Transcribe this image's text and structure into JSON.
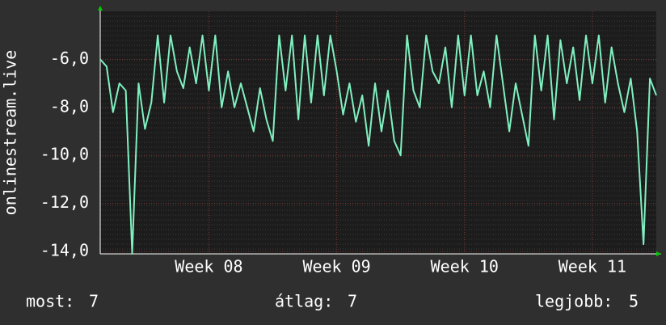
{
  "chart_data": {
    "type": "line",
    "y_label": "onlinestream.live",
    "xlim": [
      7.15,
      11.5
    ],
    "xticks": [
      {
        "value": 8,
        "label": "Week 08"
      },
      {
        "value": 9,
        "label": "Week 09"
      },
      {
        "value": 10,
        "label": "Week 10"
      },
      {
        "value": 11,
        "label": "Week 11"
      }
    ],
    "ylim": [
      -14.1,
      -4
    ],
    "yticks": [
      {
        "value": -14,
        "label": "-14,0"
      },
      {
        "value": -12,
        "label": "-12,0"
      },
      {
        "value": -10,
        "label": "-10,0"
      },
      {
        "value": -8,
        "label": "-8,0"
      },
      {
        "value": -6,
        "label": "-6,0"
      }
    ],
    "grid": true,
    "x": [
      7.15,
      7.2,
      7.25,
      7.3,
      7.35,
      7.4,
      7.45,
      7.5,
      7.55,
      7.6,
      7.65,
      7.7,
      7.75,
      7.8,
      7.85,
      7.9,
      7.95,
      8.0,
      8.05,
      8.1,
      8.15,
      8.2,
      8.25,
      8.3,
      8.35,
      8.4,
      8.45,
      8.5,
      8.55,
      8.6,
      8.65,
      8.7,
      8.75,
      8.8,
      8.85,
      8.9,
      8.95,
      9.0,
      9.05,
      9.1,
      9.15,
      9.2,
      9.25,
      9.3,
      9.35,
      9.4,
      9.45,
      9.5,
      9.55,
      9.6,
      9.65,
      9.7,
      9.75,
      9.8,
      9.85,
      9.9,
      9.95,
      10.0,
      10.05,
      10.1,
      10.15,
      10.2,
      10.25,
      10.3,
      10.35,
      10.4,
      10.45,
      10.5,
      10.55,
      10.6,
      10.65,
      10.7,
      10.75,
      10.8,
      10.85,
      10.9,
      10.95,
      11.0,
      11.05,
      11.1,
      11.15,
      11.2,
      11.25,
      11.3,
      11.35,
      11.4,
      11.45,
      11.5
    ],
    "series": [
      {
        "color": "#80f0c0",
        "values": [
          -6,
          -6.3,
          -8.2,
          -7,
          -7.3,
          -14.1,
          -7,
          -8.9,
          -7.8,
          -5,
          -7.8,
          -5,
          -6.5,
          -7.2,
          -5.5,
          -7,
          -5,
          -7.3,
          -5,
          -8,
          -6.5,
          -8,
          -7,
          -8,
          -9,
          -7.2,
          -8.5,
          -9.4,
          -5,
          -7.3,
          -5,
          -8.5,
          -5,
          -7.8,
          -5,
          -7.5,
          -5,
          -6.5,
          -8.3,
          -7,
          -8.6,
          -7.5,
          -9.6,
          -7,
          -9,
          -7.3,
          -9.4,
          -10,
          -5,
          -7.3,
          -8,
          -5,
          -6.5,
          -7,
          -5.5,
          -8,
          -5,
          -7.5,
          -5,
          -7.5,
          -6.5,
          -8,
          -5,
          -7,
          -9,
          -7,
          -8.3,
          -9.6,
          -5,
          -7.3,
          -5,
          -8.5,
          -5.2,
          -7,
          -5.5,
          -7.7,
          -5,
          -7,
          -5,
          -7.8,
          -5.5,
          -7,
          -8.2,
          -6.8,
          -9,
          -13.7,
          -6.8,
          -7.5
        ]
      }
    ],
    "stats": [
      {
        "label": "most:",
        "value": 7
      },
      {
        "label": "átlag:",
        "value": 7
      },
      {
        "label": "legjobb:",
        "value": 5
      }
    ]
  }
}
